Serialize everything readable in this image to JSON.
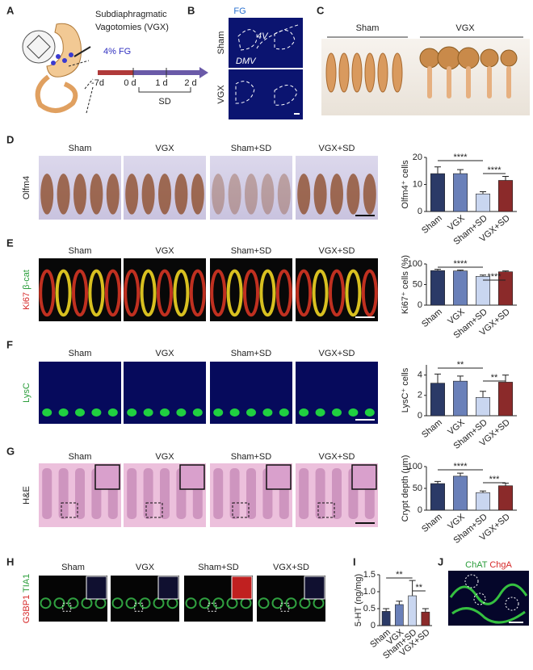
{
  "labels": [
    "A",
    "B",
    "C",
    "D",
    "E",
    "F",
    "G",
    "H",
    "I",
    "J"
  ],
  "panel_a": {
    "title_lines": [
      "Subdiaphragmatic",
      "Vagotomies (VGX)"
    ],
    "tracer": "4% FG",
    "timepoints": [
      "-7d",
      "0 d",
      "1 d",
      "2 d"
    ],
    "period": "SD"
  },
  "panel_b": {
    "title": "FG",
    "rows": [
      "Sham",
      "VGX"
    ],
    "regions": [
      "4V",
      "DMV"
    ]
  },
  "panel_c": {
    "groups": [
      "Sham",
      "VGX"
    ]
  },
  "image_rows": [
    {
      "columns": [
        "Sham",
        "VGX",
        "Sham+SD",
        "VGX+SD"
      ],
      "stains": [
        {
          "text": "Olfm4",
          "color": "#222222"
        }
      ]
    },
    {
      "columns": [
        "Sham",
        "VGX",
        "Sham+SD",
        "VGX+SD"
      ],
      "stains": [
        {
          "text": "Ki67",
          "color": "#d62828"
        },
        {
          "text": "β-cat",
          "color": "#2a9d3a"
        }
      ]
    },
    {
      "columns": [
        "Sham",
        "VGX",
        "Sham+SD",
        "VGX+SD"
      ],
      "stains": [
        {
          "text": "LysC",
          "color": "#2a9d3a"
        }
      ]
    },
    {
      "columns": [
        "Sham",
        "VGX",
        "Sham+SD",
        "VGX+SD"
      ],
      "stains": [
        {
          "text": "H&E",
          "color": "#222222"
        }
      ]
    },
    {
      "columns": [
        "Sham",
        "VGX",
        "Sham+SD",
        "VGX+SD"
      ],
      "stains": [
        {
          "text": "G3BP1",
          "color": "#d62828"
        },
        {
          "text": "TIA1",
          "color": "#2a9d3a"
        }
      ]
    }
  ],
  "panel_j": {
    "stains": [
      {
        "text": "ChAT",
        "color": "#2a9d3a"
      },
      {
        "text": "ChgA",
        "color": "#d62828"
      }
    ]
  },
  "chart_data": [
    {
      "type": "bar",
      "y_label": "Olfm4⁺ cells",
      "categories": [
        "Sham",
        "VGX",
        "Sham+SD",
        "VGX+SD"
      ],
      "values": [
        14,
        14,
        6.5,
        11.5
      ],
      "errors": [
        2.5,
        1.5,
        0.8,
        1.5
      ],
      "colors": [
        "#2b3a67",
        "#6a80b9",
        "#c9d6f0",
        "#8b2a2a"
      ],
      "ylim": [
        0,
        20
      ],
      "yticks": [
        0,
        10,
        20
      ],
      "annotations": [
        {
          "text": "****",
          "between": [
            "Sham",
            "Sham+SD"
          ]
        },
        {
          "text": "****",
          "between": [
            "Sham+SD",
            "VGX+SD"
          ]
        }
      ]
    },
    {
      "type": "bar",
      "y_label": "Ki67⁺ cells (%)",
      "categories": [
        "Sham",
        "VGX",
        "Sham+SD",
        "VGX+SD"
      ],
      "values": [
        84,
        83,
        70,
        81
      ],
      "errors": [
        3,
        2,
        3,
        2
      ],
      "colors": [
        "#2b3a67",
        "#6a80b9",
        "#c9d6f0",
        "#8b2a2a"
      ],
      "ylim": [
        0,
        100
      ],
      "yticks": [
        0,
        50,
        100
      ],
      "annotations": [
        {
          "text": "****",
          "between": [
            "Sham",
            "Sham+SD"
          ]
        },
        {
          "text": "****",
          "between": [
            "Sham+SD",
            "VGX+SD"
          ]
        }
      ]
    },
    {
      "type": "bar",
      "y_label": "LysC⁺ cells",
      "categories": [
        "Sham",
        "VGX",
        "Sham+SD",
        "VGX+SD"
      ],
      "values": [
        3.2,
        3.4,
        1.8,
        3.3
      ],
      "errors": [
        0.9,
        0.5,
        0.6,
        0.7
      ],
      "colors": [
        "#2b3a67",
        "#6a80b9",
        "#c9d6f0",
        "#8b2a2a"
      ],
      "ylim": [
        0,
        5
      ],
      "yticks": [
        0,
        2,
        4
      ],
      "annotations": [
        {
          "text": "**",
          "between": [
            "Sham",
            "Sham+SD"
          ]
        },
        {
          "text": "**",
          "between": [
            "Sham+SD",
            "VGX+SD"
          ]
        }
      ]
    },
    {
      "type": "bar",
      "y_label": "Crypt depth (μm)",
      "categories": [
        "Sham",
        "VGX",
        "Sham+SD",
        "VGX+SD"
      ],
      "values": [
        61,
        78,
        40,
        56
      ],
      "errors": [
        5,
        7,
        4,
        6
      ],
      "colors": [
        "#2b3a67",
        "#6a80b9",
        "#c9d6f0",
        "#8b2a2a"
      ],
      "ylim": [
        0,
        100
      ],
      "yticks": [
        0,
        50,
        100
      ],
      "annotations": [
        {
          "text": "****",
          "between": [
            "Sham",
            "Sham+SD"
          ]
        },
        {
          "text": "***",
          "between": [
            "Sham+SD",
            "VGX+SD"
          ]
        }
      ]
    },
    {
      "type": "bar",
      "y_label": "5-HT (ng/mg)",
      "categories": [
        "Sham",
        "VGX",
        "Sham+SD",
        "VGX+SD"
      ],
      "values": [
        0.42,
        0.62,
        0.88,
        0.4
      ],
      "errors": [
        0.08,
        0.1,
        0.45,
        0.1
      ],
      "colors": [
        "#2b3a67",
        "#6a80b9",
        "#c9d6f0",
        "#8b2a2a"
      ],
      "ylim": [
        0,
        1.5
      ],
      "yticks": [
        0,
        0.5,
        {
          "value": 1,
          "label": "1.0"
        },
        1.5
      ],
      "annotations": [
        {
          "text": "**",
          "between": [
            "Sham",
            "Sham+SD"
          ]
        },
        {
          "text": "**",
          "between": [
            "Sham+SD",
            "VGX+SD"
          ]
        }
      ]
    }
  ]
}
